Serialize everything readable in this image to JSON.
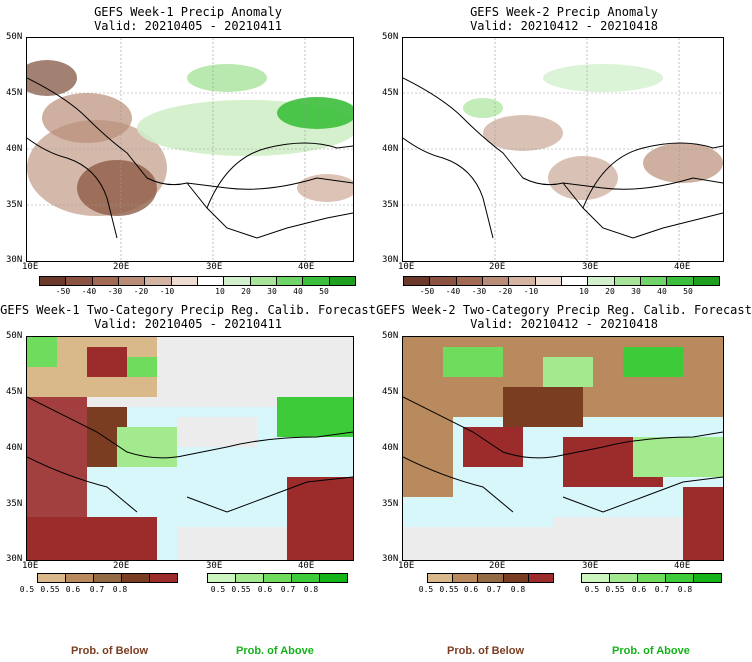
{
  "panels": {
    "p1": {
      "title": "GEFS Week-1 Precip Anomaly",
      "valid": "Valid: 20210405 - 20210411"
    },
    "p2": {
      "title": "GEFS Week-2 Precip Anomaly",
      "valid": "Valid: 20210412 - 20210418"
    },
    "p3": {
      "title": "GEFS Week-1 Two-Category Precip Reg. Calib. Forecast",
      "valid": "Valid: 20210405 - 20210411"
    },
    "p4": {
      "title": "GEFS Week-2 Two-Category Precip Reg. Calib. Forecast",
      "valid": "Valid: 20210412 - 20210418"
    }
  },
  "axes": {
    "lat_labels": [
      "50N",
      "45N",
      "40N",
      "35N",
      "30N"
    ],
    "lon_labels": [
      "10E",
      "20E",
      "30E",
      "40E"
    ]
  },
  "anomaly_colorbar": {
    "labels": [
      "-50",
      "-40",
      "-30",
      "-20",
      "-10",
      "10",
      "20",
      "30",
      "40",
      "50"
    ],
    "colors": [
      "#6b3a2a",
      "#8a5240",
      "#a06a55",
      "#b98d78",
      "#d4b4a3",
      "#ecdcd2",
      "#ffffff",
      "#d2f0cc",
      "#a8e49a",
      "#6fd56a",
      "#3cbf3c",
      "#1f9e1f"
    ]
  },
  "prob_colorbar": {
    "below": {
      "labels": [
        "0.5",
        "0.55",
        "0.6",
        "0.7",
        "0.8"
      ],
      "colors": [
        "#d9b98a",
        "#b98a5e",
        "#946a45",
        "#7a3d22",
        "#9c2b2b"
      ],
      "caption": "Prob. of Below",
      "caption_color": "#7a3d22"
    },
    "above": {
      "labels": [
        "0.5",
        "0.55",
        "0.6",
        "0.7",
        "0.8"
      ],
      "colors": [
        "#ccf5c0",
        "#a3ea8e",
        "#6fdc5e",
        "#3ecb3a",
        "#14b31a"
      ],
      "caption": "Prob. of Above",
      "caption_color": "#14b31a"
    }
  },
  "map_colors": {
    "sea": "#d8f7fb",
    "land_missing": "#ececec",
    "coast": "#000000"
  }
}
